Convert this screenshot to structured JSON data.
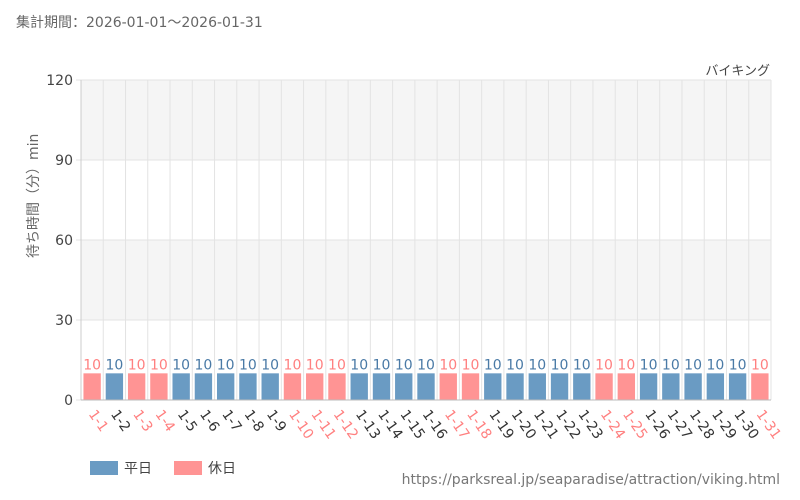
{
  "period_label": "集計期間：2026-01-01～2026-01-31",
  "attraction_name": "バイキング",
  "source_url": "https://parksreal.jp/seaparadise/attraction/viking.html",
  "colors": {
    "weekday": "#6a9bc3",
    "holiday": "#ff9494",
    "weekday_text": "#4a7aa6",
    "holiday_text": "#ff8080",
    "band": "#f5f5f5",
    "grid": "#e3e3e3"
  },
  "chart_data": {
    "type": "bar",
    "ylabel": "待ち時間（分）min",
    "xlabel": "",
    "ylim": [
      0,
      120
    ],
    "yticks": [
      0,
      30,
      60,
      90,
      120
    ],
    "categories": [
      "1-1",
      "1-2",
      "1-3",
      "1-4",
      "1-5",
      "1-6",
      "1-7",
      "1-8",
      "1-9",
      "1-10",
      "1-11",
      "1-12",
      "1-13",
      "1-14",
      "1-15",
      "1-16",
      "1-17",
      "1-18",
      "1-19",
      "1-20",
      "1-21",
      "1-22",
      "1-23",
      "1-24",
      "1-25",
      "1-26",
      "1-27",
      "1-28",
      "1-29",
      "1-30",
      "1-31"
    ],
    "values": [
      10,
      10,
      10,
      10,
      10,
      10,
      10,
      10,
      10,
      10,
      10,
      10,
      10,
      10,
      10,
      10,
      10,
      10,
      10,
      10,
      10,
      10,
      10,
      10,
      10,
      10,
      10,
      10,
      10,
      10,
      10
    ],
    "day_type": [
      "holiday",
      "weekday",
      "holiday",
      "holiday",
      "weekday",
      "weekday",
      "weekday",
      "weekday",
      "weekday",
      "holiday",
      "holiday",
      "holiday",
      "weekday",
      "weekday",
      "weekday",
      "weekday",
      "holiday",
      "holiday",
      "weekday",
      "weekday",
      "weekday",
      "weekday",
      "weekday",
      "holiday",
      "holiday",
      "weekday",
      "weekday",
      "weekday",
      "weekday",
      "weekday",
      "holiday"
    ],
    "legend": [
      {
        "key": "weekday",
        "label": "平日"
      },
      {
        "key": "holiday",
        "label": "休日"
      }
    ],
    "legend_position": "bottom-left",
    "grid": true
  }
}
